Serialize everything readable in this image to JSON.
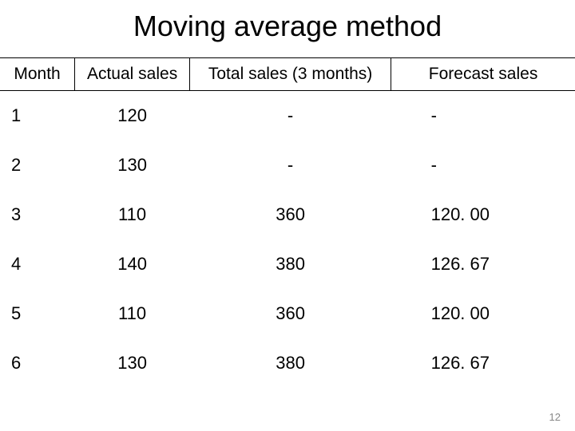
{
  "title": "Moving average method",
  "page_number": "12",
  "table": {
    "columns": [
      "Month",
      "Actual sales",
      "Total sales (3 months)",
      "Forecast sales"
    ],
    "column_widths_pct": [
      13,
      20,
      35,
      32
    ],
    "header_bg": "#ffffff",
    "header_border_color": "#000000",
    "header_fontsize": 21,
    "cell_fontsize": 22,
    "text_color": "#000000",
    "background_color": "#ffffff",
    "rows": [
      [
        "1",
        "120",
        "-",
        "-"
      ],
      [
        "2",
        "130",
        "-",
        "-"
      ],
      [
        "3",
        "110",
        "360",
        "120. 00"
      ],
      [
        "4",
        "140",
        "380",
        "126. 67"
      ],
      [
        "5",
        "110",
        "360",
        "120. 00"
      ],
      [
        "6",
        "130",
        "380",
        "126. 67"
      ]
    ]
  },
  "title_fontsize": 36,
  "page_number_color": "#888888",
  "page_number_fontsize": 13
}
